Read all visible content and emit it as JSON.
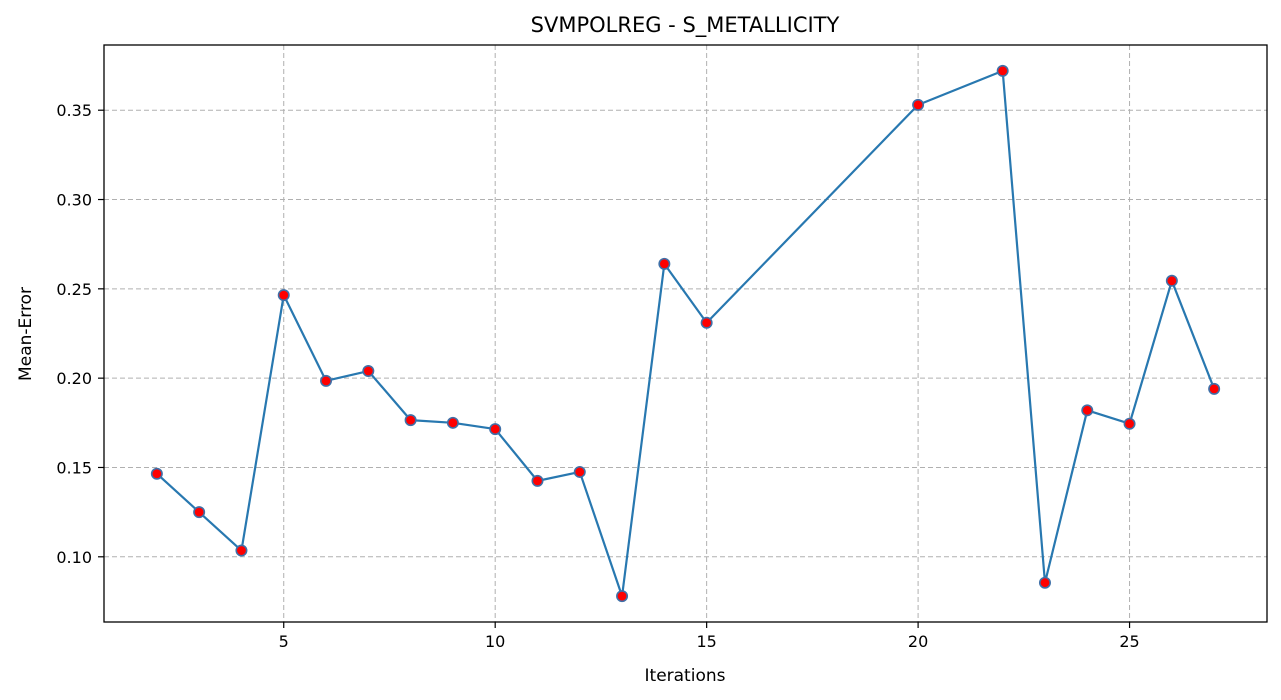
{
  "chart_data": {
    "type": "line",
    "title": "SVMPOLREG - S_METALLICITY",
    "xlabel": "Iterations",
    "ylabel": "Mean-Error",
    "xlim": [
      0.75,
      28.25
    ],
    "ylim": [
      0.0635,
      0.3865
    ],
    "xticks": [
      5,
      10,
      15,
      20,
      25
    ],
    "yticks": [
      0.1,
      0.15,
      0.2,
      0.25,
      0.3,
      0.35
    ],
    "ytick_labels": [
      "0.10",
      "0.15",
      "0.20",
      "0.25",
      "0.30",
      "0.35"
    ],
    "grid": true,
    "grid_style": "dashed",
    "line_color": "#2878b0",
    "marker_fill": "#ff0000",
    "marker_edge": "#3f70a8",
    "series": [
      {
        "x": [
          2,
          3,
          4,
          5,
          6,
          7,
          8,
          9,
          10,
          11,
          12,
          13,
          14,
          15,
          20,
          22,
          23,
          24,
          25,
          26,
          27
        ],
        "y": [
          0.1465,
          0.125,
          0.1035,
          0.2465,
          0.1985,
          0.204,
          0.1765,
          0.175,
          0.1715,
          0.1425,
          0.1475,
          0.078,
          0.264,
          0.231,
          0.353,
          0.372,
          0.0855,
          0.182,
          0.1745,
          0.2545,
          0.194
        ]
      }
    ]
  }
}
